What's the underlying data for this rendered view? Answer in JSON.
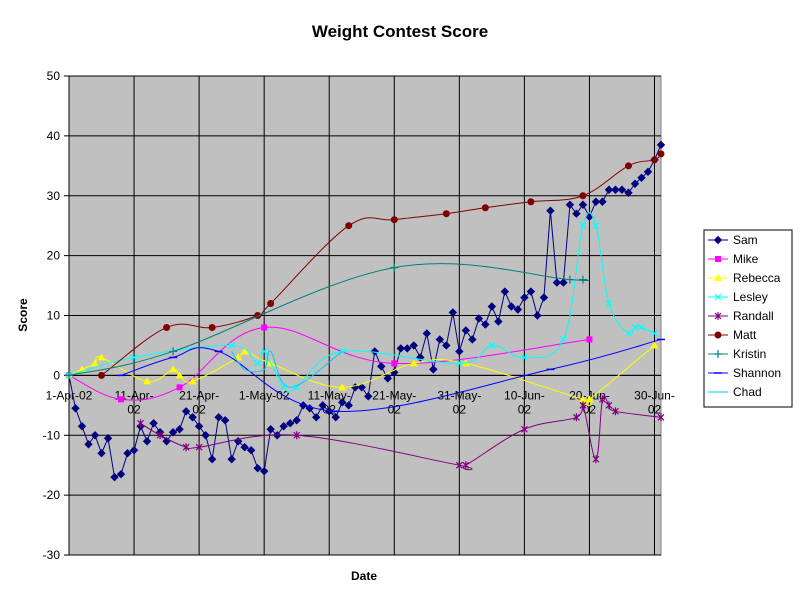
{
  "chart_data": {
    "type": "line",
    "title": "Weight Contest Score",
    "xlabel": "Date",
    "ylabel": "Score",
    "ylim": [
      -30,
      50
    ],
    "yticks": [
      -30,
      -20,
      -10,
      0,
      10,
      20,
      30,
      40,
      50
    ],
    "xlim": [
      "2002-04-01",
      "2002-07-01"
    ],
    "xticks": [
      {
        "date": "2002-04-01",
        "label": [
          "1-Apr-02"
        ]
      },
      {
        "date": "2002-04-11",
        "label": [
          "11-Apr-",
          "02"
        ]
      },
      {
        "date": "2002-04-21",
        "label": [
          "21-Apr-",
          "02"
        ]
      },
      {
        "date": "2002-05-01",
        "label": [
          "1-May-02"
        ]
      },
      {
        "date": "2002-05-11",
        "label": [
          "11-May-",
          "02"
        ]
      },
      {
        "date": "2002-05-21",
        "label": [
          "21-May-",
          "02"
        ]
      },
      {
        "date": "2002-05-31",
        "label": [
          "31-May-",
          "02"
        ]
      },
      {
        "date": "2002-06-10",
        "label": [
          "10-Jun-",
          "02"
        ]
      },
      {
        "date": "2002-06-20",
        "label": [
          "20-Jun-",
          "02"
        ]
      },
      {
        "date": "2002-06-30",
        "label": [
          "30-Jun-",
          "02"
        ]
      }
    ],
    "grid": true,
    "legend": "right",
    "plot_background": "#c0c0c0",
    "series": [
      {
        "name": "Sam",
        "color": "#000080",
        "marker": "diamond",
        "smooth": false,
        "x": [
          "2002-04-01",
          "2002-04-02",
          "2002-04-03",
          "2002-04-04",
          "2002-04-05",
          "2002-04-06",
          "2002-04-07",
          "2002-04-08",
          "2002-04-09",
          "2002-04-10",
          "2002-04-11",
          "2002-04-12",
          "2002-04-13",
          "2002-04-14",
          "2002-04-15",
          "2002-04-16",
          "2002-04-17",
          "2002-04-18",
          "2002-04-19",
          "2002-04-20",
          "2002-04-21",
          "2002-04-22",
          "2002-04-23",
          "2002-04-24",
          "2002-04-25",
          "2002-04-26",
          "2002-04-27",
          "2002-04-28",
          "2002-04-29",
          "2002-04-30",
          "2002-05-01",
          "2002-05-02",
          "2002-05-03",
          "2002-05-04",
          "2002-05-05",
          "2002-05-06",
          "2002-05-07",
          "2002-05-08",
          "2002-05-09",
          "2002-05-10",
          "2002-05-11",
          "2002-05-12",
          "2002-05-13",
          "2002-05-14",
          "2002-05-15",
          "2002-05-16",
          "2002-05-17",
          "2002-05-18",
          "2002-05-19",
          "2002-05-20",
          "2002-05-21",
          "2002-05-22",
          "2002-05-23",
          "2002-05-24",
          "2002-05-25",
          "2002-05-26",
          "2002-05-27",
          "2002-05-28",
          "2002-05-29",
          "2002-05-30",
          "2002-05-31",
          "2002-06-01",
          "2002-06-02",
          "2002-06-03",
          "2002-06-04",
          "2002-06-05",
          "2002-06-06",
          "2002-06-07",
          "2002-06-08",
          "2002-06-09",
          "2002-06-10",
          "2002-06-11",
          "2002-06-12",
          "2002-06-13",
          "2002-06-14",
          "2002-06-15",
          "2002-06-16",
          "2002-06-17",
          "2002-06-18",
          "2002-06-19",
          "2002-06-20",
          "2002-06-21",
          "2002-06-22",
          "2002-06-23",
          "2002-06-24",
          "2002-06-25",
          "2002-06-26",
          "2002-06-27",
          "2002-06-28",
          "2002-06-29",
          "2002-06-30",
          "2002-07-01"
        ],
        "y": [
          0,
          -5.5,
          -8.5,
          -11.5,
          -10,
          -13,
          -10.5,
          -17,
          -16.5,
          -13,
          -12.5,
          -8.5,
          -11,
          -8,
          -9.5,
          -11,
          -9.5,
          -9,
          -6,
          -7,
          -8.5,
          -10,
          -14,
          -7,
          -7.5,
          -14,
          -11,
          -12,
          -12.5,
          -15.5,
          -16,
          -9,
          -10,
          -8.5,
          -8,
          -7.5,
          -5,
          -5.5,
          -7,
          -5,
          -6,
          -7,
          -4.5,
          -5,
          -2,
          -2,
          -3.5,
          4,
          1.5,
          -0.5,
          0.5,
          4.5,
          4.5,
          5,
          3,
          7,
          1,
          6,
          5,
          10.5,
          4,
          7.5,
          6,
          9.5,
          8.5,
          11.5,
          9,
          14,
          11.5,
          11,
          13,
          14,
          10,
          13,
          27.5,
          15.5,
          15.5,
          28.5,
          27,
          28.5,
          26.5,
          29,
          29,
          31,
          31,
          31,
          30.5,
          32,
          33,
          34,
          36,
          38.5
        ]
      },
      {
        "name": "Mike",
        "color": "#ff00ff",
        "marker": "square",
        "smooth": true,
        "x": [
          "2002-04-01",
          "2002-04-09",
          "2002-04-18",
          "2002-05-01",
          "2002-05-21",
          "2002-06-20"
        ],
        "y": [
          0,
          -4,
          -2,
          8,
          2,
          6
        ]
      },
      {
        "name": "Rebecca",
        "color": "#ffff00",
        "marker": "triangle",
        "smooth": true,
        "x": [
          "2002-04-01",
          "2002-04-03",
          "2002-04-05",
          "2002-04-06",
          "2002-04-13",
          "2002-04-17",
          "2002-04-18",
          "2002-04-20",
          "2002-04-27",
          "2002-04-28",
          "2002-05-02",
          "2002-05-13",
          "2002-05-24",
          "2002-06-01",
          "2002-06-19",
          "2002-06-20",
          "2002-06-30"
        ],
        "y": [
          0,
          1,
          2,
          3,
          -1,
          1,
          0,
          -1,
          3,
          4,
          2,
          -2,
          2,
          2,
          -4,
          -4,
          5
        ]
      },
      {
        "name": "Lesley",
        "color": "#00ffff",
        "marker": "x",
        "smooth": true,
        "x": [
          "2002-04-01",
          "2002-04-11",
          "2002-04-26",
          "2002-04-30",
          "2002-05-01",
          "2002-05-04",
          "2002-05-06",
          "2002-05-13",
          "2002-05-31",
          "2002-06-05",
          "2002-06-10",
          "2002-06-16",
          "2002-06-19",
          "2002-06-21",
          "2002-06-23",
          "2002-06-26",
          "2002-06-27",
          "2002-06-28",
          "2002-06-30"
        ],
        "y": [
          0,
          3,
          5,
          2,
          4,
          -2,
          -2,
          4,
          2,
          5,
          3,
          6,
          25,
          25,
          12,
          7,
          8,
          8,
          7
        ]
      },
      {
        "name": "Randall",
        "color": "#800080",
        "marker": "star",
        "smooth": true,
        "x": [
          "2002-04-12",
          "2002-04-15",
          "2002-04-19",
          "2002-04-21",
          "2002-05-06",
          "2002-05-31",
          "2002-06-01",
          "2002-06-10",
          "2002-06-18",
          "2002-06-19",
          "2002-06-21",
          "2002-06-22",
          "2002-06-23",
          "2002-06-24",
          "2002-07-01"
        ],
        "y": [
          -8,
          -10,
          -12,
          -12,
          -10,
          -15,
          -15,
          -9,
          -7,
          -5,
          -14,
          -4,
          -5,
          -6,
          -7
        ]
      },
      {
        "name": "Matt",
        "color": "#800000",
        "marker": "circle",
        "smooth": true,
        "x": [
          "2002-04-06",
          "2002-04-16",
          "2002-04-23",
          "2002-04-30",
          "2002-05-02",
          "2002-05-14",
          "2002-05-21",
          "2002-05-29",
          "2002-06-04",
          "2002-06-11",
          "2002-06-19",
          "2002-06-26",
          "2002-06-30",
          "2002-07-01"
        ],
        "y": [
          0,
          8,
          8,
          10,
          12,
          25,
          26,
          27,
          28,
          29,
          30,
          35,
          36,
          37
        ]
      },
      {
        "name": "Kristin",
        "color": "#008080",
        "marker": "plus",
        "smooth": true,
        "x": [
          "2002-04-01",
          "2002-04-17",
          "2002-05-21",
          "2002-06-17",
          "2002-06-19"
        ],
        "y": [
          0,
          4,
          18,
          16,
          16
        ]
      },
      {
        "name": "Shannon",
        "color": "#0000ff",
        "marker": "dash",
        "smooth": true,
        "x": [
          "2002-04-09",
          "2002-04-17",
          "2002-04-24",
          "2002-05-12",
          "2002-06-14",
          "2002-07-01"
        ],
        "y": [
          0,
          3,
          4,
          -6,
          1,
          6
        ]
      },
      {
        "name": "Chad",
        "color": "#00ccff",
        "marker": "none",
        "smooth": true,
        "x": [
          "2002-04-26",
          "2002-04-28",
          "2002-05-01",
          "2002-05-02",
          "2002-05-05",
          "2002-05-13"
        ],
        "y": [
          4,
          1,
          1,
          4,
          -2,
          4
        ]
      }
    ]
  }
}
